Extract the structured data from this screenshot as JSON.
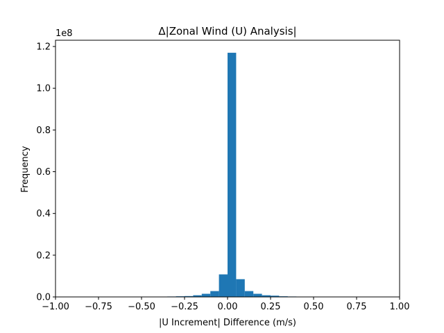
{
  "chart_data": {
    "type": "bar",
    "title": "Δ|Zonal Wind (U) Analysis|",
    "xlabel": "|U Increment| Difference (m/s)",
    "ylabel": "Frequency",
    "y_offset_label": "1e8",
    "xlim": [
      -1.0,
      1.0
    ],
    "ylim": [
      0,
      1.23
    ],
    "y_scale": 100000000,
    "x_ticks": [
      -1.0,
      -0.75,
      -0.5,
      -0.25,
      0.0,
      0.25,
      0.5,
      0.75,
      1.0
    ],
    "x_tick_labels": [
      "−1.00",
      "−0.75",
      "−0.50",
      "−0.25",
      "0.00",
      "0.25",
      "0.50",
      "0.75",
      "1.00"
    ],
    "y_ticks": [
      0.0,
      0.2,
      0.4,
      0.6,
      0.8,
      1.0,
      1.2
    ],
    "y_tick_labels": [
      "0.0",
      "0.2",
      "0.4",
      "0.6",
      "0.8",
      "1.0",
      "1.2"
    ],
    "bar_color": "#1f77b4",
    "bins": [
      {
        "x0": -0.4,
        "x1": -0.35,
        "value": 0.001
      },
      {
        "x0": -0.35,
        "x1": -0.3,
        "value": 0.002
      },
      {
        "x0": -0.3,
        "x1": -0.25,
        "value": 0.003
      },
      {
        "x0": -0.25,
        "x1": -0.2,
        "value": 0.004
      },
      {
        "x0": -0.2,
        "x1": -0.15,
        "value": 0.008
      },
      {
        "x0": -0.15,
        "x1": -0.1,
        "value": 0.015
      },
      {
        "x0": -0.1,
        "x1": -0.05,
        "value": 0.028
      },
      {
        "x0": -0.05,
        "x1": 0.0,
        "value": 0.108
      },
      {
        "x0": 0.0,
        "x1": 0.05,
        "value": 1.17
      },
      {
        "x0": 0.05,
        "x1": 0.1,
        "value": 0.085
      },
      {
        "x0": 0.1,
        "x1": 0.15,
        "value": 0.028
      },
      {
        "x0": 0.15,
        "x1": 0.2,
        "value": 0.015
      },
      {
        "x0": 0.2,
        "x1": 0.25,
        "value": 0.008
      },
      {
        "x0": 0.25,
        "x1": 0.3,
        "value": 0.006
      },
      {
        "x0": 0.3,
        "x1": 0.35,
        "value": 0.003
      },
      {
        "x0": 0.35,
        "x1": 0.4,
        "value": 0.002
      },
      {
        "x0": 0.4,
        "x1": 0.45,
        "value": 0.001
      }
    ],
    "grid": false,
    "legend": "none"
  }
}
